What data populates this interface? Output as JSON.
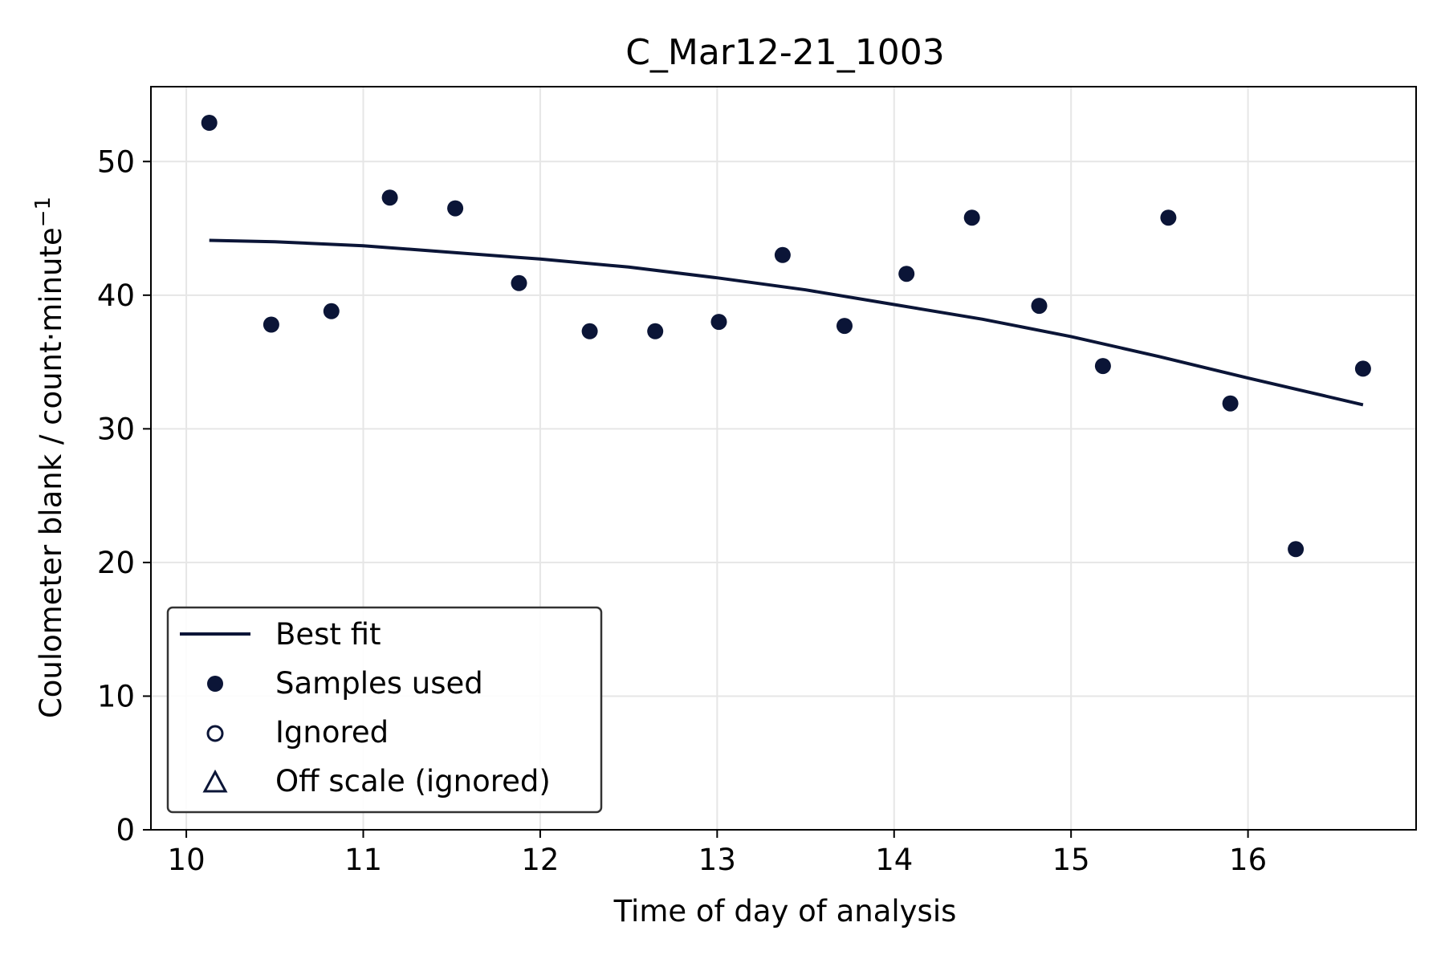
{
  "chart_data": {
    "type": "scatter",
    "title": "C_Mar12-21_1003",
    "xlabel": "Time of day of analysis",
    "ylabel_main": "Coulometer blank / count·minute",
    "ylabel_sup": "−1",
    "xlim": [
      9.8,
      16.95
    ],
    "ylim": [
      0,
      55.6
    ],
    "xticks": [
      "10",
      "11",
      "12",
      "13",
      "14",
      "15",
      "16"
    ],
    "yticks": [
      "0",
      "10",
      "20",
      "30",
      "40",
      "50"
    ],
    "grid": true,
    "legend_position": "lower-left",
    "colors": {
      "series": "#0b1537",
      "grid": "#e6e6e6",
      "axis": "#000000"
    },
    "legend": [
      {
        "label": "Best fit",
        "marker": "line"
      },
      {
        "label": "Samples used",
        "marker": "filled-circle"
      },
      {
        "label": "Ignored",
        "marker": "open-circle"
      },
      {
        "label": "Off scale (ignored)",
        "marker": "open-triangle"
      }
    ],
    "series": [
      {
        "name": "Samples used",
        "type": "scatter",
        "points": [
          [
            10.13,
            52.9
          ],
          [
            10.48,
            37.8
          ],
          [
            10.82,
            38.8
          ],
          [
            11.15,
            47.3
          ],
          [
            11.52,
            46.5
          ],
          [
            11.88,
            40.9
          ],
          [
            12.28,
            37.3
          ],
          [
            12.65,
            37.3
          ],
          [
            13.01,
            38.0
          ],
          [
            13.37,
            43.0
          ],
          [
            13.72,
            37.7
          ],
          [
            14.07,
            41.6
          ],
          [
            14.44,
            45.8
          ],
          [
            14.82,
            39.2
          ],
          [
            15.18,
            34.7
          ],
          [
            15.55,
            45.8
          ],
          [
            15.9,
            31.9
          ],
          [
            16.27,
            21.0
          ],
          [
            16.65,
            34.5
          ]
        ]
      },
      {
        "name": "Best fit",
        "type": "line",
        "points": [
          [
            10.13,
            44.1
          ],
          [
            10.5,
            44.0
          ],
          [
            11.0,
            43.7
          ],
          [
            11.5,
            43.2
          ],
          [
            12.0,
            42.7
          ],
          [
            12.5,
            42.1
          ],
          [
            13.0,
            41.3
          ],
          [
            13.5,
            40.4
          ],
          [
            14.0,
            39.3
          ],
          [
            14.5,
            38.2
          ],
          [
            15.0,
            36.9
          ],
          [
            15.5,
            35.4
          ],
          [
            16.0,
            33.8
          ],
          [
            16.65,
            31.8
          ]
        ]
      }
    ]
  }
}
